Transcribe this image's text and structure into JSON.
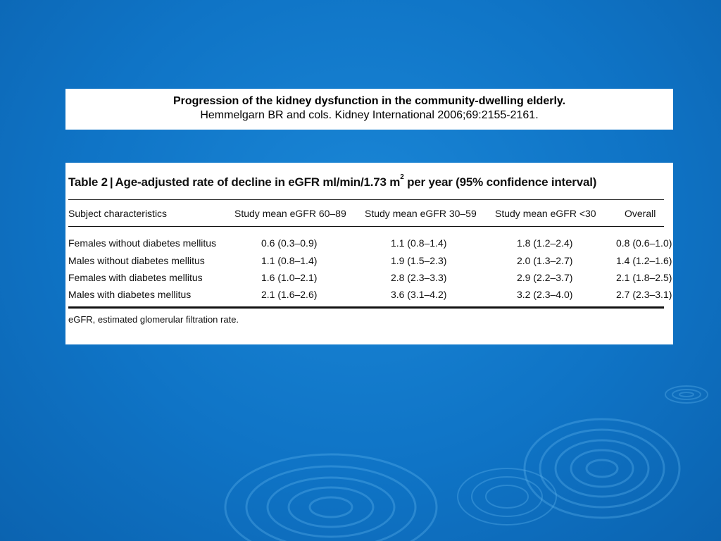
{
  "slide": {
    "title_line1": "Progression of the kidney dysfunction in the community-dwelling elderly.",
    "title_line2": "Hemmelgarn BR and cols.  Kidney International 2006;69:2155-2161."
  },
  "table": {
    "label": "Table 2",
    "caption_main": "Age-adjusted rate of decline in eGFR ml/min/1.73 m",
    "caption_sup": "2",
    "caption_tail": " per year (95% confidence interval)",
    "headers": [
      "Subject characteristics",
      "Study mean eGFR 60–89",
      "Study mean eGFR 30–59",
      "Study mean eGFR <30",
      "Overall"
    ],
    "rows": [
      [
        "Females without diabetes mellitus",
        "0.6 (0.3–0.9)",
        "1.1 (0.8–1.4)",
        "1.8 (1.2–2.4)",
        "0.8 (0.6–1.0)"
      ],
      [
        "Males without diabetes mellitus",
        "1.1 (0.8–1.4)",
        "1.9 (1.5–2.3)",
        "2.0 (1.3–2.7)",
        "1.4 (1.2–1.6)"
      ],
      [
        "Females with diabetes mellitus",
        "1.6 (1.0–2.1)",
        "2.8 (2.3–3.3)",
        "2.9 (2.2–3.7)",
        "2.1 (1.8–2.5)"
      ],
      [
        "Males with diabetes mellitus",
        "2.1 (1.6–2.6)",
        "3.6 (3.1–4.2)",
        "3.2 (2.3–4.0)",
        "2.7 (2.3–3.1)"
      ]
    ],
    "footnote": "eGFR, estimated glomerular filtration rate."
  },
  "colors": {
    "background": "#0f74c6",
    "panel": "#ffffff",
    "text": "#000000"
  }
}
